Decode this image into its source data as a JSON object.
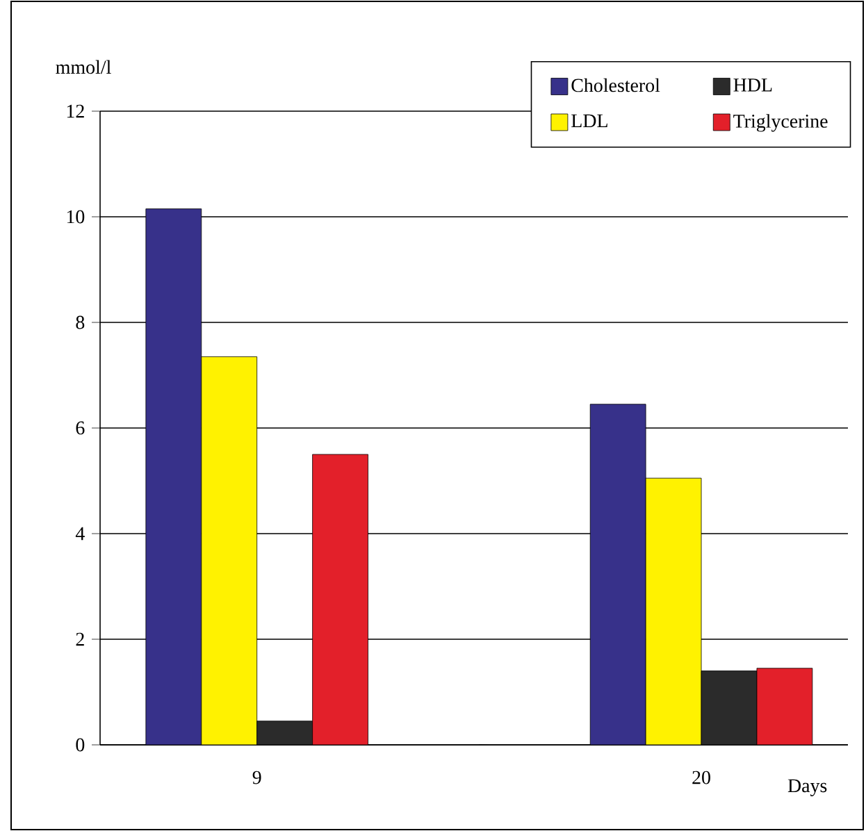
{
  "chart_data": {
    "type": "bar",
    "ylabel": "mmol/l",
    "xlabel": "Days",
    "categories": [
      "9",
      "20"
    ],
    "series": [
      {
        "name": "Cholesterol",
        "color": "#37318a",
        "values": [
          10.15,
          6.45
        ]
      },
      {
        "name": "LDL",
        "color": "#fff200",
        "values": [
          7.35,
          5.05
        ]
      },
      {
        "name": "HDL",
        "color": "#2b2b2b",
        "values": [
          0.45,
          1.4
        ]
      },
      {
        "name": "Triglycerine",
        "color": "#e3202a",
        "values": [
          5.5,
          1.45
        ]
      }
    ],
    "ylim": [
      0,
      12
    ],
    "yticks": [
      0,
      2,
      4,
      6,
      8,
      10,
      12
    ],
    "grid": "y",
    "legend": "top right"
  }
}
